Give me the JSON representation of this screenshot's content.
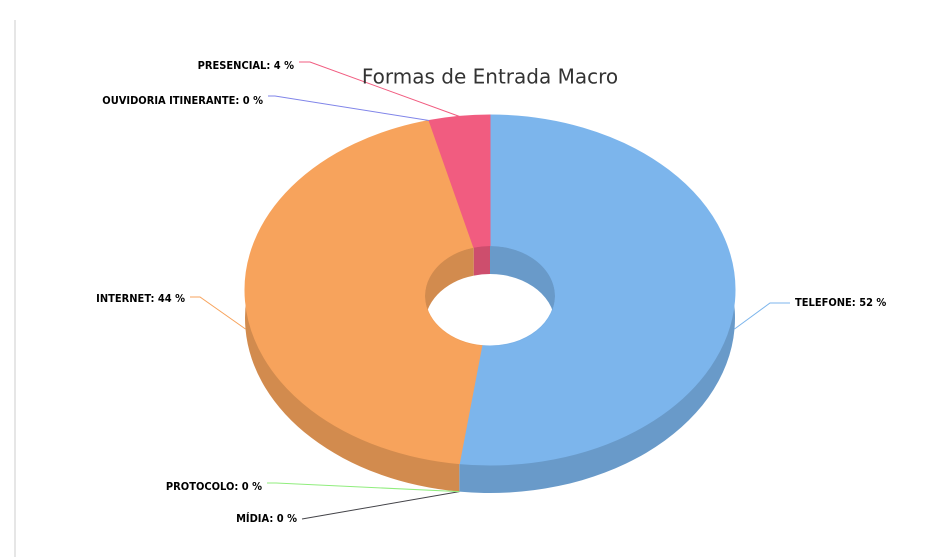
{
  "chart_data": {
    "type": "pie",
    "title": "Formas de Entrada Macro",
    "values": [
      52,
      0,
      0,
      44,
      0,
      4
    ],
    "value_labels": [
      "TELEFONE: 52 %",
      "MÍDIA: 0 %",
      "PROTOCOLO: 0 %",
      "INTERNET: 44 %",
      "OUVIDORIA ITINERANTE: 0 %",
      "PRESENCIAL: 4 %"
    ],
    "colors": [
      "#7cb5ec",
      "#434348",
      "#90ed7d",
      "#f7a35c",
      "#8085e9",
      "#f15c80"
    ],
    "donut": true,
    "depth3d": true
  }
}
